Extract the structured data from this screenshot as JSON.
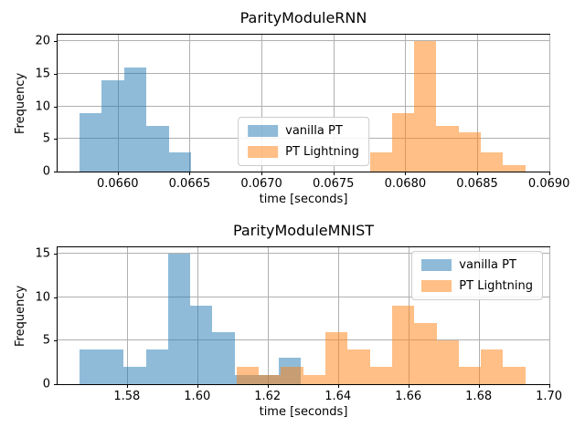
{
  "colors": {
    "background": "#ffffff",
    "grid": "#b0b0b0",
    "spine": "#000000",
    "text": "#000000",
    "legend_border": "#cccccc",
    "vanilla_pt": "#1f77b4",
    "pt_lightning": "#ff7f0e"
  },
  "chart_data": [
    {
      "type": "histogram",
      "title": "ParityModuleRNN",
      "xlabel": "time [seconds]",
      "ylabel": "Frequency",
      "xlim": [
        0.065582,
        0.069002
      ],
      "ylim": [
        0,
        21
      ],
      "grid": true,
      "xtick_values": [
        0.066,
        0.0665,
        0.067,
        0.0675,
        0.068,
        0.0685,
        0.069
      ],
      "xtick_labels": [
        "0.0660",
        "0.0665",
        "0.0670",
        "0.0675",
        "0.0680",
        "0.0685",
        "0.0690"
      ],
      "ytick_values": [
        0,
        5,
        10,
        15,
        20
      ],
      "ytick_labels": [
        "0",
        "5",
        "10",
        "15",
        "20"
      ],
      "legend": {
        "location": "lower center",
        "items": [
          {
            "label": "vanilla PT",
            "color": "#1f77b4",
            "alpha": 0.5
          },
          {
            "label": "PT Lightning",
            "color": "#ff7f0e",
            "alpha": 0.5
          }
        ]
      },
      "series": [
        {
          "name": "vanilla PT",
          "color": "#1f77b4",
          "alpha": 0.5,
          "bin_start": 0.065734,
          "bin_width": 0.0001556,
          "counts": [
            9,
            14,
            16,
            7,
            3
          ]
        },
        {
          "name": "PT Lightning",
          "color": "#ff7f0e",
          "alpha": 0.5,
          "bin_start": 0.067753,
          "bin_width": 0.0001544,
          "counts": [
            3,
            9,
            20,
            7,
            6,
            3,
            1
          ]
        }
      ]
    },
    {
      "type": "histogram",
      "title": "ParityModuleMNIST",
      "xlabel": "time [seconds]",
      "ylabel": "Frequency",
      "xlim": [
        1.5603,
        1.7001
      ],
      "ylim": [
        0,
        15.75
      ],
      "grid": true,
      "xtick_values": [
        1.58,
        1.6,
        1.62,
        1.64,
        1.66,
        1.68,
        1.7
      ],
      "xtick_labels": [
        "1.58",
        "1.60",
        "1.62",
        "1.64",
        "1.66",
        "1.68",
        "1.70"
      ],
      "ytick_values": [
        0,
        5,
        10,
        15
      ],
      "ytick_labels": [
        "0",
        "5",
        "10",
        "15"
      ],
      "legend": {
        "location": "upper right",
        "items": [
          {
            "label": "vanilla PT",
            "color": "#1f77b4",
            "alpha": 0.5
          },
          {
            "label": "PT Lightning",
            "color": "#ff7f0e",
            "alpha": 0.5
          }
        ]
      },
      "series": [
        {
          "name": "vanilla PT",
          "color": "#1f77b4",
          "alpha": 0.5,
          "bin_start": 1.5665,
          "bin_width": 0.0063,
          "counts": [
            4,
            4,
            2,
            4,
            15,
            9,
            6,
            1,
            1,
            3
          ]
        },
        {
          "name": "PT Lightning",
          "color": "#ff7f0e",
          "alpha": 0.5,
          "bin_start": 1.6112,
          "bin_width": 0.006314,
          "counts": [
            2,
            1,
            2,
            1,
            6,
            4,
            2,
            9,
            7,
            5,
            2,
            4,
            2
          ]
        }
      ]
    }
  ]
}
